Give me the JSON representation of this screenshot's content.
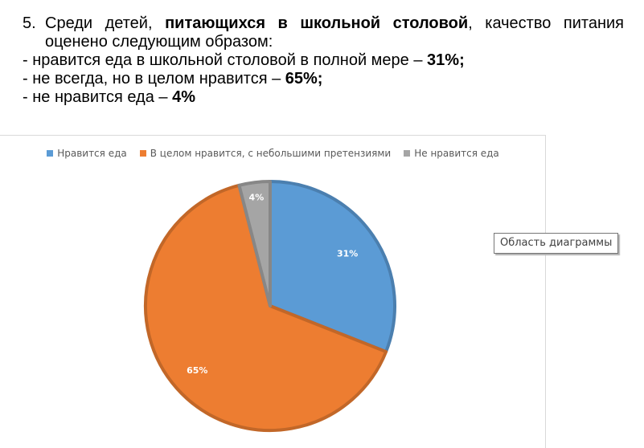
{
  "heading": {
    "number": "5.",
    "intro_before": "Среди детей, ",
    "intro_bold": "питающихся в школьной столовой",
    "intro_after": ", качество питания оценено следующим образом:",
    "bullets": [
      {
        "text": "- нравится еда в школьной столовой в полной мере – ",
        "value": "31%;"
      },
      {
        "text": "- не всегда, но в целом нравится – ",
        "value": "65%;"
      },
      {
        "text": "- не нравится еда – ",
        "value": "4%"
      }
    ]
  },
  "chart_data": {
    "type": "pie",
    "categories": [
      "Нравится еда",
      "В целом нравится, с небольшими претензиями",
      "Не нравится еда"
    ],
    "values": [
      31,
      65,
      4
    ],
    "labels": [
      "31%",
      "65%",
      "4%"
    ],
    "colors": [
      "#5b9bd5",
      "#ed7d31",
      "#a5a5a5"
    ],
    "start_angle_deg": 0,
    "direction": "clockwise",
    "legend_position": "top"
  },
  "tooltip": {
    "text": "Область диаграммы"
  }
}
